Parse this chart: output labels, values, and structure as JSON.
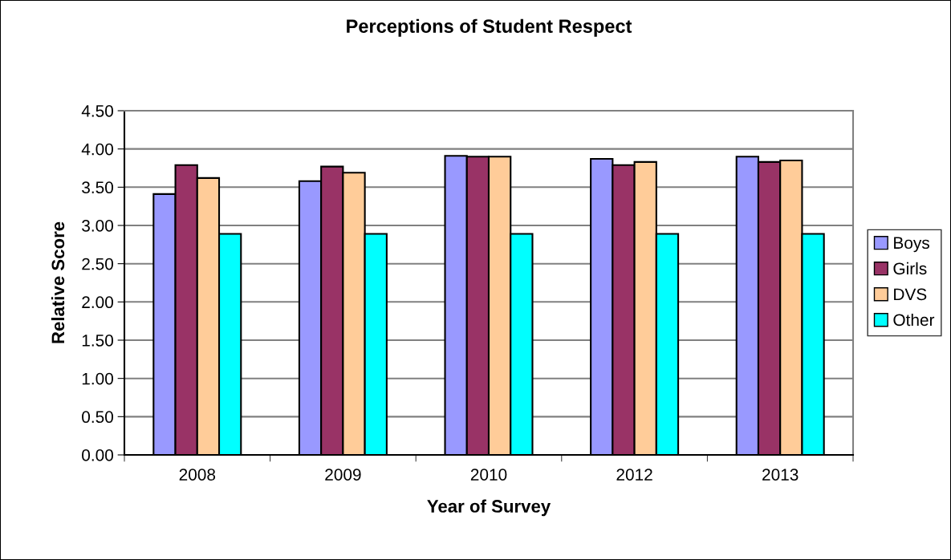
{
  "chart_data": {
    "type": "bar",
    "title": "Perceptions of Student Respect",
    "xlabel": "Year of Survey",
    "ylabel": "Relative Score",
    "categories": [
      "2008",
      "2009",
      "2010",
      "2012",
      "2013"
    ],
    "series": [
      {
        "name": "Boys",
        "color": "#9999ff",
        "values": [
          3.41,
          3.58,
          3.91,
          3.87,
          3.9
        ]
      },
      {
        "name": "Girls",
        "color": "#993366",
        "values": [
          3.79,
          3.77,
          3.9,
          3.79,
          3.83
        ]
      },
      {
        "name": "DVS",
        "color": "#ffcc99",
        "values": [
          3.62,
          3.69,
          3.9,
          3.83,
          3.85
        ]
      },
      {
        "name": "Other",
        "color": "#00ffff",
        "values": [
          2.89,
          2.89,
          2.89,
          2.89,
          2.89
        ]
      }
    ],
    "ylim": [
      0,
      4.5
    ],
    "yticks": [
      {
        "value": 0,
        "label": "0.00"
      },
      {
        "value": 0.5,
        "label": "0.50"
      },
      {
        "value": 1,
        "label": "1.00"
      },
      {
        "value": 1.5,
        "label": "1.50"
      },
      {
        "value": 2,
        "label": "2.00"
      },
      {
        "value": 2.5,
        "label": "2.50"
      },
      {
        "value": 3,
        "label": "3.00"
      },
      {
        "value": 3.5,
        "label": "3.50"
      },
      {
        "value": 4,
        "label": "4.00"
      },
      {
        "value": 4.5,
        "label": "4.50"
      }
    ],
    "grid": "y",
    "legend": "right"
  }
}
